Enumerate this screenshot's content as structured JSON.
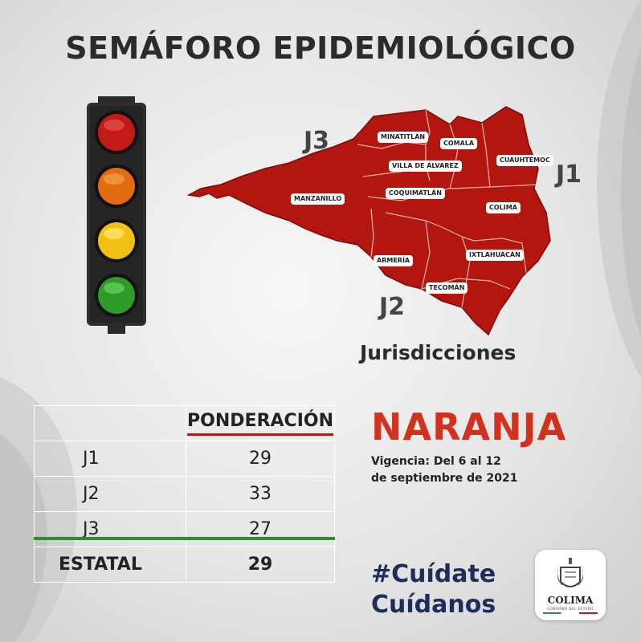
{
  "title": "SEMÁFORO EPIDEMIOLÓGICO",
  "map": {
    "jurisdictions_label": "Jurisdicciones",
    "jurisdiction_tags": [
      "J1",
      "J2",
      "J3"
    ],
    "municipalities": [
      "MINATITLÁN",
      "COMALA",
      "CUAUHTÉMOC",
      "VILLA DE ÁLVAREZ",
      "COQUIMATLÁN",
      "MANZANILLO",
      "COLIMA",
      "ARMERÍA",
      "IXTLAHUACÁN",
      "TECOMÁN"
    ],
    "fill_color": "#b3160f"
  },
  "traffic_light": {
    "lights": [
      "red",
      "orange",
      "yellow",
      "green"
    ]
  },
  "table": {
    "header": "PONDERACIÓN",
    "rows": [
      {
        "label": "J1",
        "value": "29"
      },
      {
        "label": "J2",
        "value": "33"
      },
      {
        "label": "J3",
        "value": "27"
      }
    ],
    "total": {
      "label": "ESTATAL",
      "value": "29"
    }
  },
  "status": {
    "level": "NARANJA",
    "color": "#d1321e",
    "validity": [
      "Vigencia: Del 6 al 12",
      "de septiembre de 2021"
    ]
  },
  "hashtags": [
    "#Cuídate",
    "Cuídanos"
  ],
  "logo": {
    "name": "COLIMA",
    "subtitle": "GOBIERNO DEL ESTADO"
  }
}
